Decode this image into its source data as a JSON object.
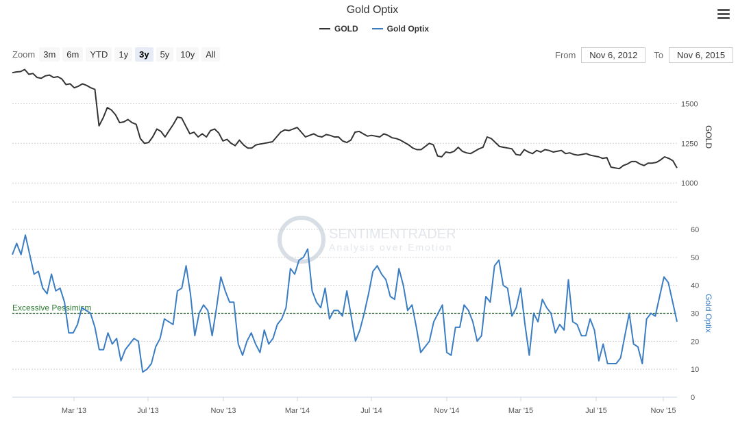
{
  "header": {
    "title": "Gold Optix"
  },
  "legend": [
    {
      "name": "GOLD",
      "color": "#333333"
    },
    {
      "name": "Gold Optix",
      "color": "#3a7dc2"
    }
  ],
  "toolbar": {
    "zoom_label": "Zoom",
    "zoom_buttons": [
      "3m",
      "6m",
      "YTD",
      "1y",
      "3y",
      "5y",
      "10y",
      "All"
    ],
    "active_zoom": "3y",
    "from_label": "From",
    "from_value": "Nov 6, 2012",
    "to_label": "To",
    "to_value": "Nov 6, 2015"
  },
  "watermark": {
    "line1": "SENTIMENTRADER",
    "line2": "Analysis over Emotion"
  },
  "chart_data": {
    "type": "line",
    "x_ticks": [
      "Mar '13",
      "Jul '13",
      "Nov '13",
      "Mar '14",
      "Jul '14",
      "Nov '14",
      "Mar '15",
      "Jul '15",
      "Nov '15"
    ],
    "panels": [
      {
        "series": "GOLD",
        "color": "#333333",
        "ylabel": "GOLD",
        "yticks": [
          1000,
          1250,
          1500
        ],
        "ylim": [
          880,
          1700
        ],
        "values": [
          1695,
          1700,
          1702,
          1715,
          1685,
          1690,
          1665,
          1660,
          1675,
          1680,
          1665,
          1670,
          1655,
          1620,
          1625,
          1600,
          1610,
          1625,
          1615,
          1600,
          1590,
          1360,
          1410,
          1475,
          1460,
          1430,
          1380,
          1385,
          1400,
          1380,
          1370,
          1280,
          1250,
          1255,
          1290,
          1340,
          1325,
          1290,
          1330,
          1370,
          1415,
          1410,
          1360,
          1310,
          1320,
          1290,
          1310,
          1290,
          1330,
          1340,
          1315,
          1265,
          1275,
          1250,
          1235,
          1270,
          1240,
          1220,
          1220,
          1240,
          1245,
          1250,
          1255,
          1260,
          1290,
          1320,
          1335,
          1330,
          1340,
          1350,
          1320,
          1290,
          1300,
          1310,
          1295,
          1290,
          1305,
          1300,
          1290,
          1290,
          1265,
          1255,
          1270,
          1320,
          1325,
          1310,
          1295,
          1300,
          1295,
          1290,
          1310,
          1300,
          1285,
          1280,
          1270,
          1255,
          1240,
          1220,
          1210,
          1210,
          1230,
          1250,
          1240,
          1170,
          1165,
          1195,
          1190,
          1200,
          1225,
          1200,
          1190,
          1185,
          1200,
          1215,
          1225,
          1290,
          1280,
          1255,
          1230,
          1225,
          1220,
          1215,
          1180,
          1175,
          1210,
          1195,
          1185,
          1205,
          1195,
          1210,
          1205,
          1195,
          1200,
          1205,
          1185,
          1190,
          1180,
          1175,
          1180,
          1185,
          1175,
          1170,
          1165,
          1155,
          1160,
          1100,
          1095,
          1090,
          1110,
          1120,
          1135,
          1135,
          1120,
          1110,
          1125,
          1125,
          1130,
          1145,
          1165,
          1155,
          1140,
          1095
        ]
      },
      {
        "series": "Gold Optix",
        "color": "#3a7dc2",
        "ylabel": "Gold Optix",
        "yticks": [
          0,
          10,
          20,
          30,
          40,
          50,
          60
        ],
        "ylim": [
          0,
          60
        ],
        "reference_line": {
          "value": 30,
          "label": "Excessive Pessimism",
          "color": "#2e7d32"
        },
        "values": [
          51,
          55,
          51,
          58,
          51,
          44,
          45,
          39,
          37,
          44,
          38,
          39,
          34,
          23,
          23,
          26,
          32,
          31,
          30,
          25,
          17,
          17,
          23,
          19,
          21,
          13,
          17,
          19,
          21,
          20,
          9,
          10,
          12,
          18,
          21,
          28,
          27,
          26,
          38,
          39,
          47,
          37,
          22,
          30,
          33,
          31,
          22,
          32,
          43,
          38,
          34,
          34,
          19,
          15,
          20,
          23,
          19,
          16,
          24,
          19,
          21,
          26,
          28,
          32,
          46,
          44,
          49,
          50,
          53,
          38,
          34,
          32,
          39,
          28,
          31,
          31,
          29,
          38,
          29,
          20,
          24,
          30,
          37,
          45,
          47,
          44,
          42,
          36,
          35,
          46,
          40,
          31,
          33,
          25,
          16,
          18,
          20,
          27,
          30,
          33,
          16,
          15,
          25,
          25,
          33,
          31,
          27,
          20,
          22,
          36,
          34,
          47,
          49,
          40,
          39,
          29,
          32,
          39,
          26,
          15,
          30,
          27,
          35,
          32,
          30,
          23,
          26,
          24,
          42,
          27,
          26,
          22,
          22,
          28,
          24,
          13,
          19,
          12,
          12,
          12,
          14,
          22,
          30,
          19,
          18,
          12,
          28,
          30,
          29,
          36,
          43,
          41,
          34,
          27
        ]
      }
    ]
  }
}
